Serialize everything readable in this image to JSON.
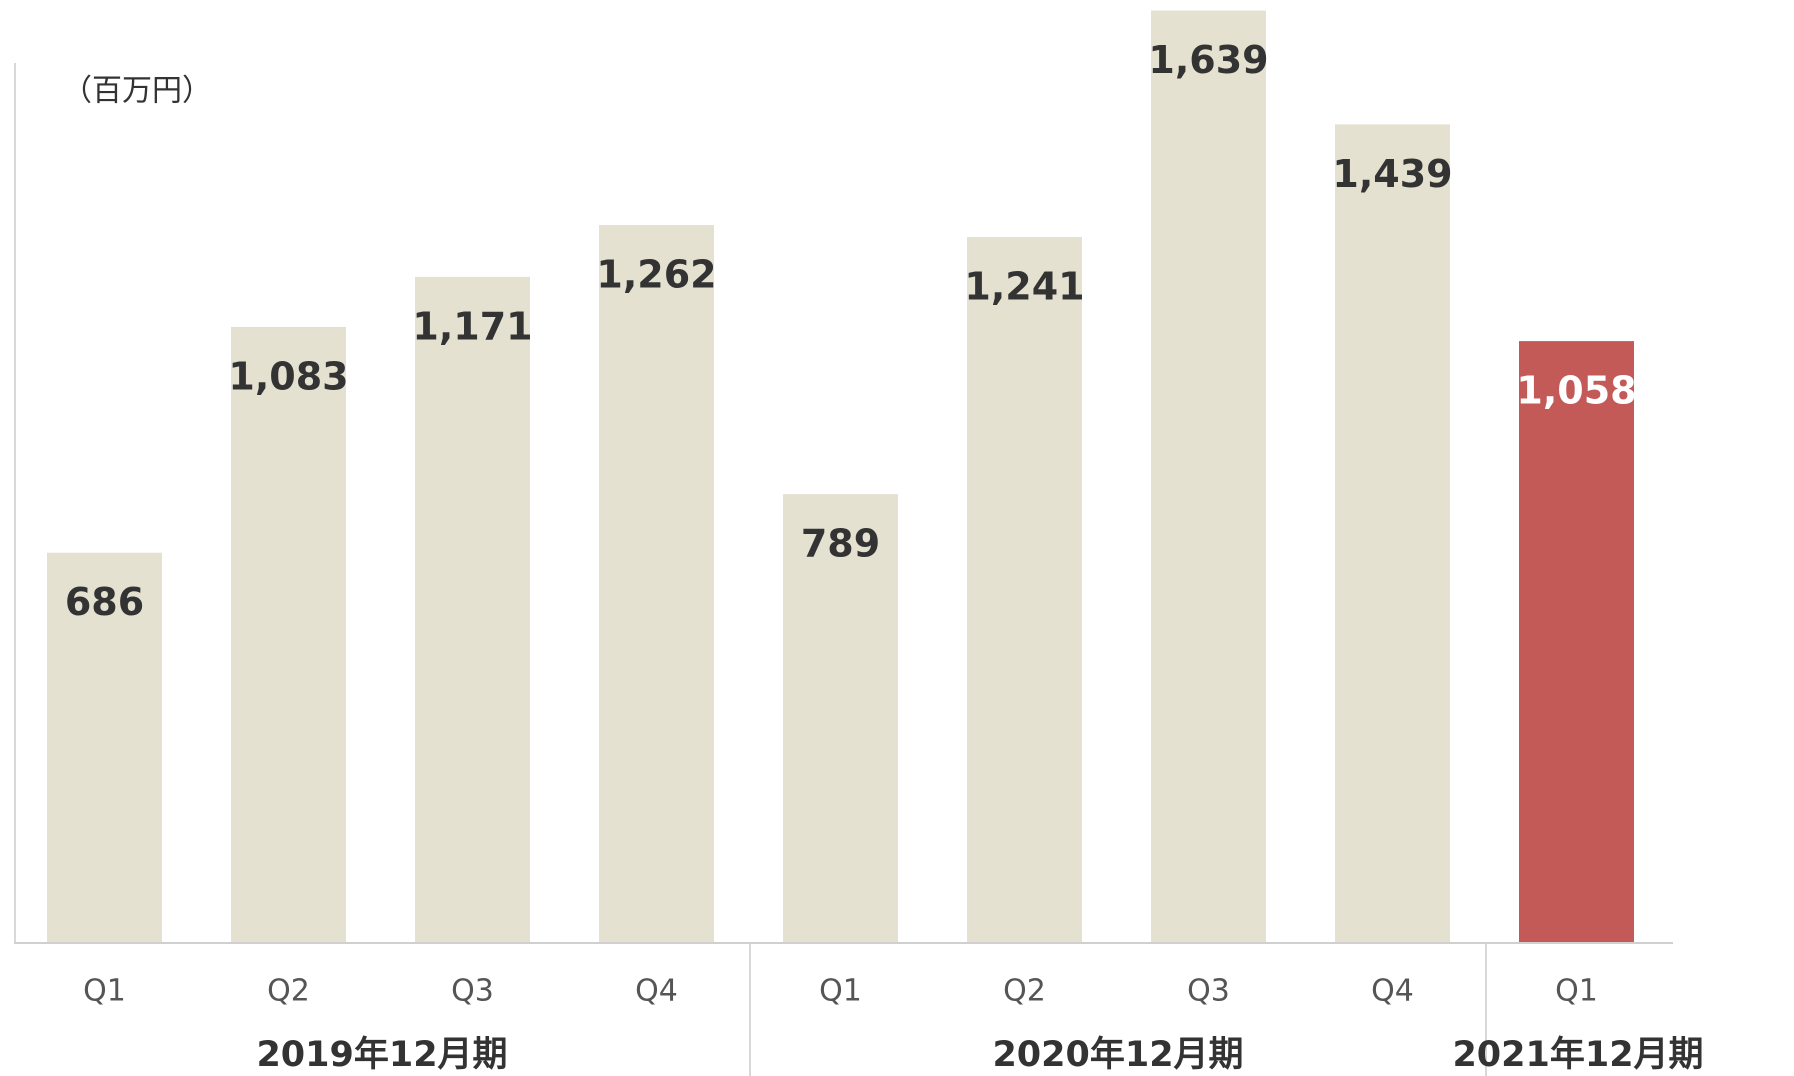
{
  "chart_data": {
    "type": "bar",
    "unit_label": "（百万円）",
    "ylim": [
      0,
      1640
    ],
    "groups": [
      {
        "label": "2019年12月期",
        "categories": [
          "Q1",
          "Q2",
          "Q3",
          "Q4"
        ],
        "values": [
          686,
          1083,
          1171,
          1262
        ],
        "value_labels": [
          "686",
          "1,083",
          "1,171",
          "1,262"
        ],
        "color": "#e4e1d1",
        "label_color": "#333333"
      },
      {
        "label": "2020年12月期",
        "categories": [
          "Q1",
          "Q2",
          "Q3",
          "Q4"
        ],
        "values": [
          789,
          1241,
          1639,
          1439
        ],
        "value_labels": [
          "789",
          "1,241",
          "1,639",
          "1,439"
        ],
        "color": "#e4e1d1",
        "label_color": "#333333"
      },
      {
        "label": "2021年12月期",
        "categories": [
          "Q1"
        ],
        "values": [
          1058
        ],
        "value_labels": [
          "1,058"
        ],
        "color": "#c45a57",
        "label_color": "#ffffff"
      }
    ]
  }
}
